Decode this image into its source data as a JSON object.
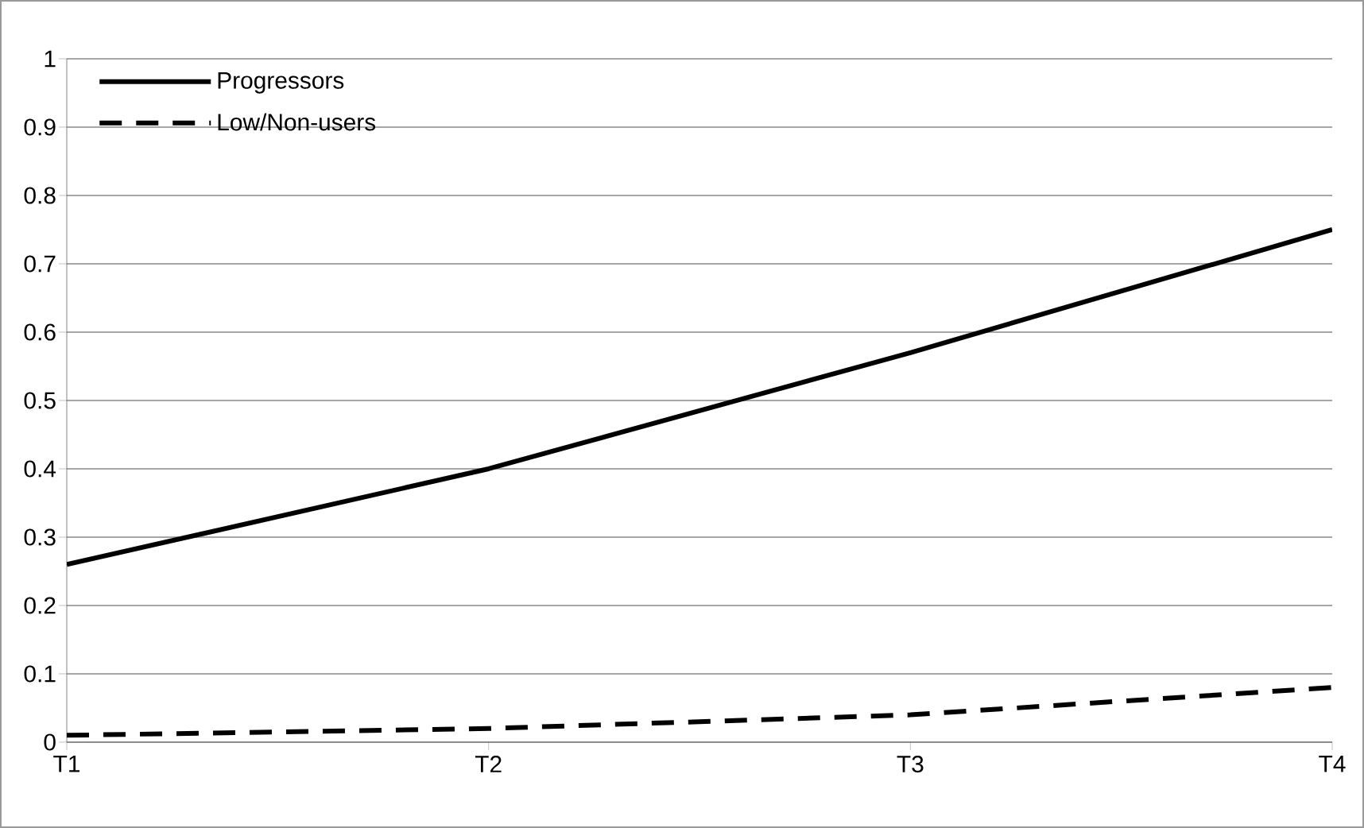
{
  "chart_data": {
    "type": "line",
    "categories": [
      "T1",
      "T2",
      "T3",
      "T4"
    ],
    "series": [
      {
        "name": "Progressors",
        "color": "#000000",
        "line_style": "solid",
        "values": [
          0.26,
          0.4,
          0.57,
          0.75
        ]
      },
      {
        "name": "Low/Non-users",
        "color": "#000000",
        "line_style": "dashed",
        "values": [
          0.01,
          0.02,
          0.04,
          0.08
        ]
      }
    ],
    "ylim": [
      0,
      1
    ],
    "yticks": [
      0,
      0.1,
      0.2,
      0.3,
      0.4,
      0.5,
      0.6,
      0.7,
      0.8,
      0.9,
      1
    ],
    "grid": "y",
    "legend": "top left"
  }
}
